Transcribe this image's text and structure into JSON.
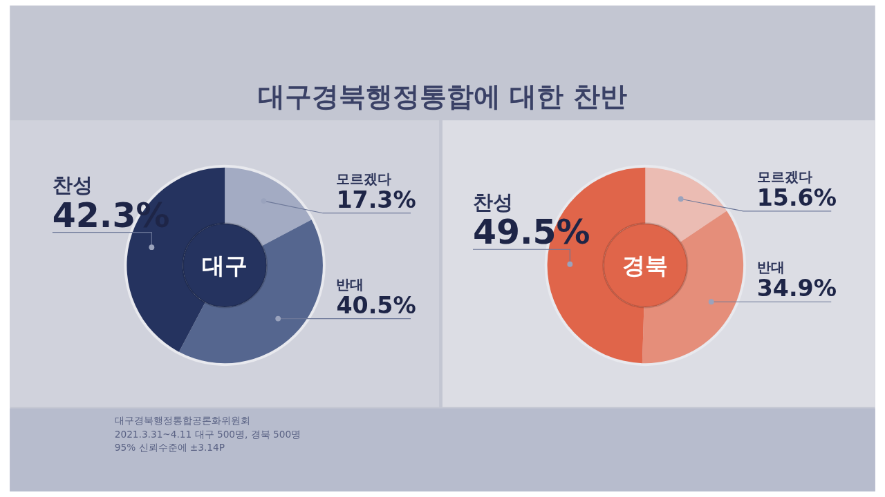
{
  "chart_data": [
    {
      "type": "donut",
      "title": "대구경북행정통합에 대한 찬반",
      "subtitle": "대구",
      "categories": [
        "모르겠다",
        "반대",
        "찬성"
      ],
      "values": [
        17.3,
        40.5,
        42.3
      ],
      "colors": [
        "#a3abc3",
        "#55668f",
        "#25335f"
      ],
      "value_labels": [
        "17.3%",
        "40.5%",
        "42.3%"
      ],
      "annotations": [
        "대구경북행정통합공론화위원회",
        "2021.3.31~4.11 대구 500명, 경북 500명",
        "95% 신뢰수준에 ±3.14P"
      ]
    },
    {
      "type": "donut",
      "subtitle": "경북",
      "categories": [
        "모르겠다",
        "반대",
        "찬성"
      ],
      "values": [
        15.6,
        34.9,
        49.5
      ],
      "colors": [
        "#ebbcb3",
        "#e58e7a",
        "#e0654a"
      ],
      "value_labels": [
        "15.6%",
        "34.9%",
        "49.5%"
      ]
    }
  ]
}
